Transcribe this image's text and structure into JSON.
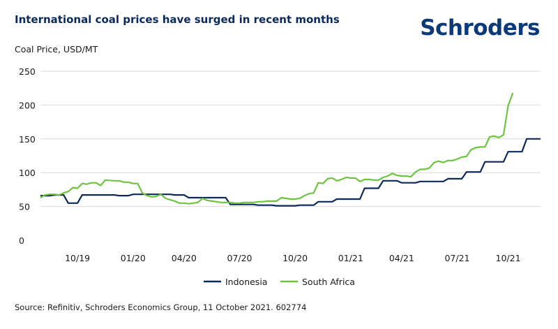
{
  "header": {
    "title": "International coal prices have surged in recent months",
    "logo_text": "Schroders"
  },
  "footer": {
    "source": "Source: Refinitiv, Schroders Economics Group, 11 October 2021. 602774"
  },
  "colors": {
    "indonesia": "#0b2a5b",
    "south_africa": "#6cc43f",
    "grid": "#d9d9d9"
  },
  "chart_data": {
    "type": "line",
    "title": "International coal prices have surged in recent months",
    "ylabel": "Coal Price, USD/MT",
    "xlabel": "",
    "ylim": [
      0,
      250
    ],
    "yticks": [
      0,
      50,
      100,
      150,
      200,
      250
    ],
    "xlim_weeks": [
      0,
      108
    ],
    "xticks": [
      {
        "label": "10/19",
        "week": 8
      },
      {
        "label": "01/20",
        "week": 20
      },
      {
        "label": "04/20",
        "week": 31
      },
      {
        "label": "07/20",
        "week": 43
      },
      {
        "label": "10/20",
        "week": 55
      },
      {
        "label": "01/21",
        "week": 67
      },
      {
        "label": "04/21",
        "week": 78
      },
      {
        "label": "07/21",
        "week": 90
      },
      {
        "label": "10/21",
        "week": 101
      }
    ],
    "legend_position": "bottom-center",
    "grid": "horizontal",
    "series": [
      {
        "name": "Indonesia",
        "points": [
          [
            0,
            66
          ],
          [
            2,
            66
          ],
          [
            3,
            67
          ],
          [
            4,
            67
          ],
          [
            5,
            67
          ],
          [
            6,
            55
          ],
          [
            8,
            55
          ],
          [
            9,
            67
          ],
          [
            16,
            67
          ],
          [
            17,
            66
          ],
          [
            19,
            66
          ],
          [
            20,
            68
          ],
          [
            28,
            68
          ],
          [
            29,
            67
          ],
          [
            31,
            67
          ],
          [
            32,
            63
          ],
          [
            40,
            63
          ],
          [
            41,
            53
          ],
          [
            46,
            53
          ],
          [
            47,
            52
          ],
          [
            50,
            52
          ],
          [
            51,
            51
          ],
          [
            55,
            51
          ],
          [
            56,
            52
          ],
          [
            59,
            52
          ],
          [
            60,
            57
          ],
          [
            63,
            57
          ],
          [
            64,
            61
          ],
          [
            69,
            61
          ],
          [
            70,
            77
          ],
          [
            73,
            77
          ],
          [
            74,
            88
          ],
          [
            77,
            88
          ],
          [
            78,
            85
          ],
          [
            81,
            85
          ],
          [
            82,
            87
          ],
          [
            87,
            87
          ],
          [
            88,
            91
          ],
          [
            91,
            91
          ],
          [
            92,
            101
          ],
          [
            95,
            101
          ],
          [
            96,
            116
          ],
          [
            100,
            116
          ],
          [
            101,
            131
          ],
          [
            104,
            131
          ],
          [
            105,
            150
          ],
          [
            108,
            150
          ]
        ]
      },
      {
        "name": "South Africa",
        "points": [
          [
            0,
            63
          ],
          [
            1,
            67
          ],
          [
            2,
            68
          ],
          [
            3,
            68
          ],
          [
            4,
            67
          ],
          [
            5,
            70
          ],
          [
            6,
            72
          ],
          [
            7,
            78
          ],
          [
            8,
            77
          ],
          [
            9,
            84
          ],
          [
            10,
            83
          ],
          [
            11,
            85
          ],
          [
            12,
            85
          ],
          [
            13,
            81
          ],
          [
            14,
            89
          ],
          [
            16,
            88
          ],
          [
            17,
            88
          ],
          [
            18,
            86
          ],
          [
            19,
            86
          ],
          [
            20,
            84
          ],
          [
            21,
            84
          ],
          [
            22,
            70
          ],
          [
            23,
            66
          ],
          [
            24,
            64
          ],
          [
            25,
            65
          ],
          [
            26,
            68
          ],
          [
            27,
            62
          ],
          [
            28,
            60
          ],
          [
            29,
            58
          ],
          [
            30,
            55
          ],
          [
            31,
            55
          ],
          [
            32,
            54
          ],
          [
            33,
            55
          ],
          [
            34,
            56
          ],
          [
            35,
            62
          ],
          [
            36,
            59
          ],
          [
            37,
            58
          ],
          [
            38,
            57
          ],
          [
            39,
            56
          ],
          [
            40,
            56
          ],
          [
            41,
            56
          ],
          [
            42,
            55
          ],
          [
            43,
            55
          ],
          [
            44,
            56
          ],
          [
            45,
            56
          ],
          [
            46,
            56
          ],
          [
            47,
            57
          ],
          [
            48,
            57
          ],
          [
            49,
            58
          ],
          [
            50,
            58
          ],
          [
            51,
            58
          ],
          [
            52,
            63
          ],
          [
            53,
            62
          ],
          [
            54,
            61
          ],
          [
            55,
            61
          ],
          [
            56,
            62
          ],
          [
            57,
            66
          ],
          [
            58,
            69
          ],
          [
            59,
            70
          ],
          [
            60,
            85
          ],
          [
            61,
            84
          ],
          [
            62,
            91
          ],
          [
            63,
            92
          ],
          [
            64,
            88
          ],
          [
            65,
            90
          ],
          [
            66,
            93
          ],
          [
            67,
            92
          ],
          [
            68,
            92
          ],
          [
            69,
            87
          ],
          [
            70,
            90
          ],
          [
            71,
            90
          ],
          [
            72,
            89
          ],
          [
            73,
            89
          ],
          [
            74,
            93
          ],
          [
            75,
            95
          ],
          [
            76,
            99
          ],
          [
            77,
            96
          ],
          [
            78,
            95
          ],
          [
            79,
            95
          ],
          [
            80,
            94
          ],
          [
            81,
            101
          ],
          [
            82,
            105
          ],
          [
            83,
            105
          ],
          [
            84,
            107
          ],
          [
            85,
            115
          ],
          [
            86,
            117
          ],
          [
            87,
            115
          ],
          [
            88,
            118
          ],
          [
            89,
            118
          ],
          [
            90,
            120
          ],
          [
            91,
            123
          ],
          [
            92,
            124
          ],
          [
            93,
            134
          ],
          [
            94,
            137
          ],
          [
            95,
            138
          ],
          [
            96,
            138
          ],
          [
            97,
            153
          ],
          [
            98,
            154
          ],
          [
            99,
            152
          ],
          [
            100,
            156
          ],
          [
            101,
            199
          ],
          [
            102,
            218
          ]
        ]
      }
    ]
  }
}
